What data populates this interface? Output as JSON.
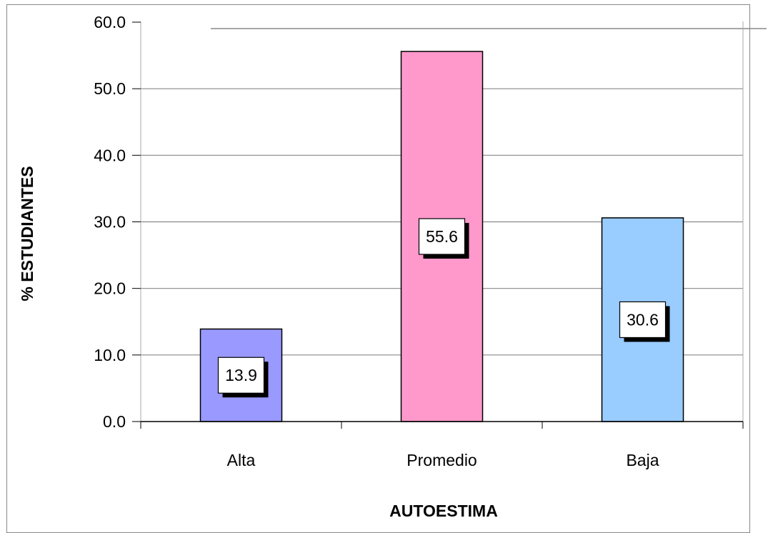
{
  "chart_data": {
    "type": "bar",
    "categories": [
      "Alta",
      "Promedio",
      "Baja"
    ],
    "values": [
      13.9,
      55.6,
      30.6
    ],
    "value_labels": [
      "13.9",
      "55.6",
      "30.6"
    ],
    "colors": [
      "#9999ff",
      "#ff99cc",
      "#99ccff"
    ],
    "xlabel": "AUTOESTIMA",
    "ylabel": "% ESTUDIANTES",
    "ylim": [
      0,
      60
    ],
    "yticks": [
      "0.0",
      "10.0",
      "20.0",
      "30.0",
      "40.0",
      "50.0",
      "60.0"
    ],
    "grid": true,
    "legend": "none"
  }
}
